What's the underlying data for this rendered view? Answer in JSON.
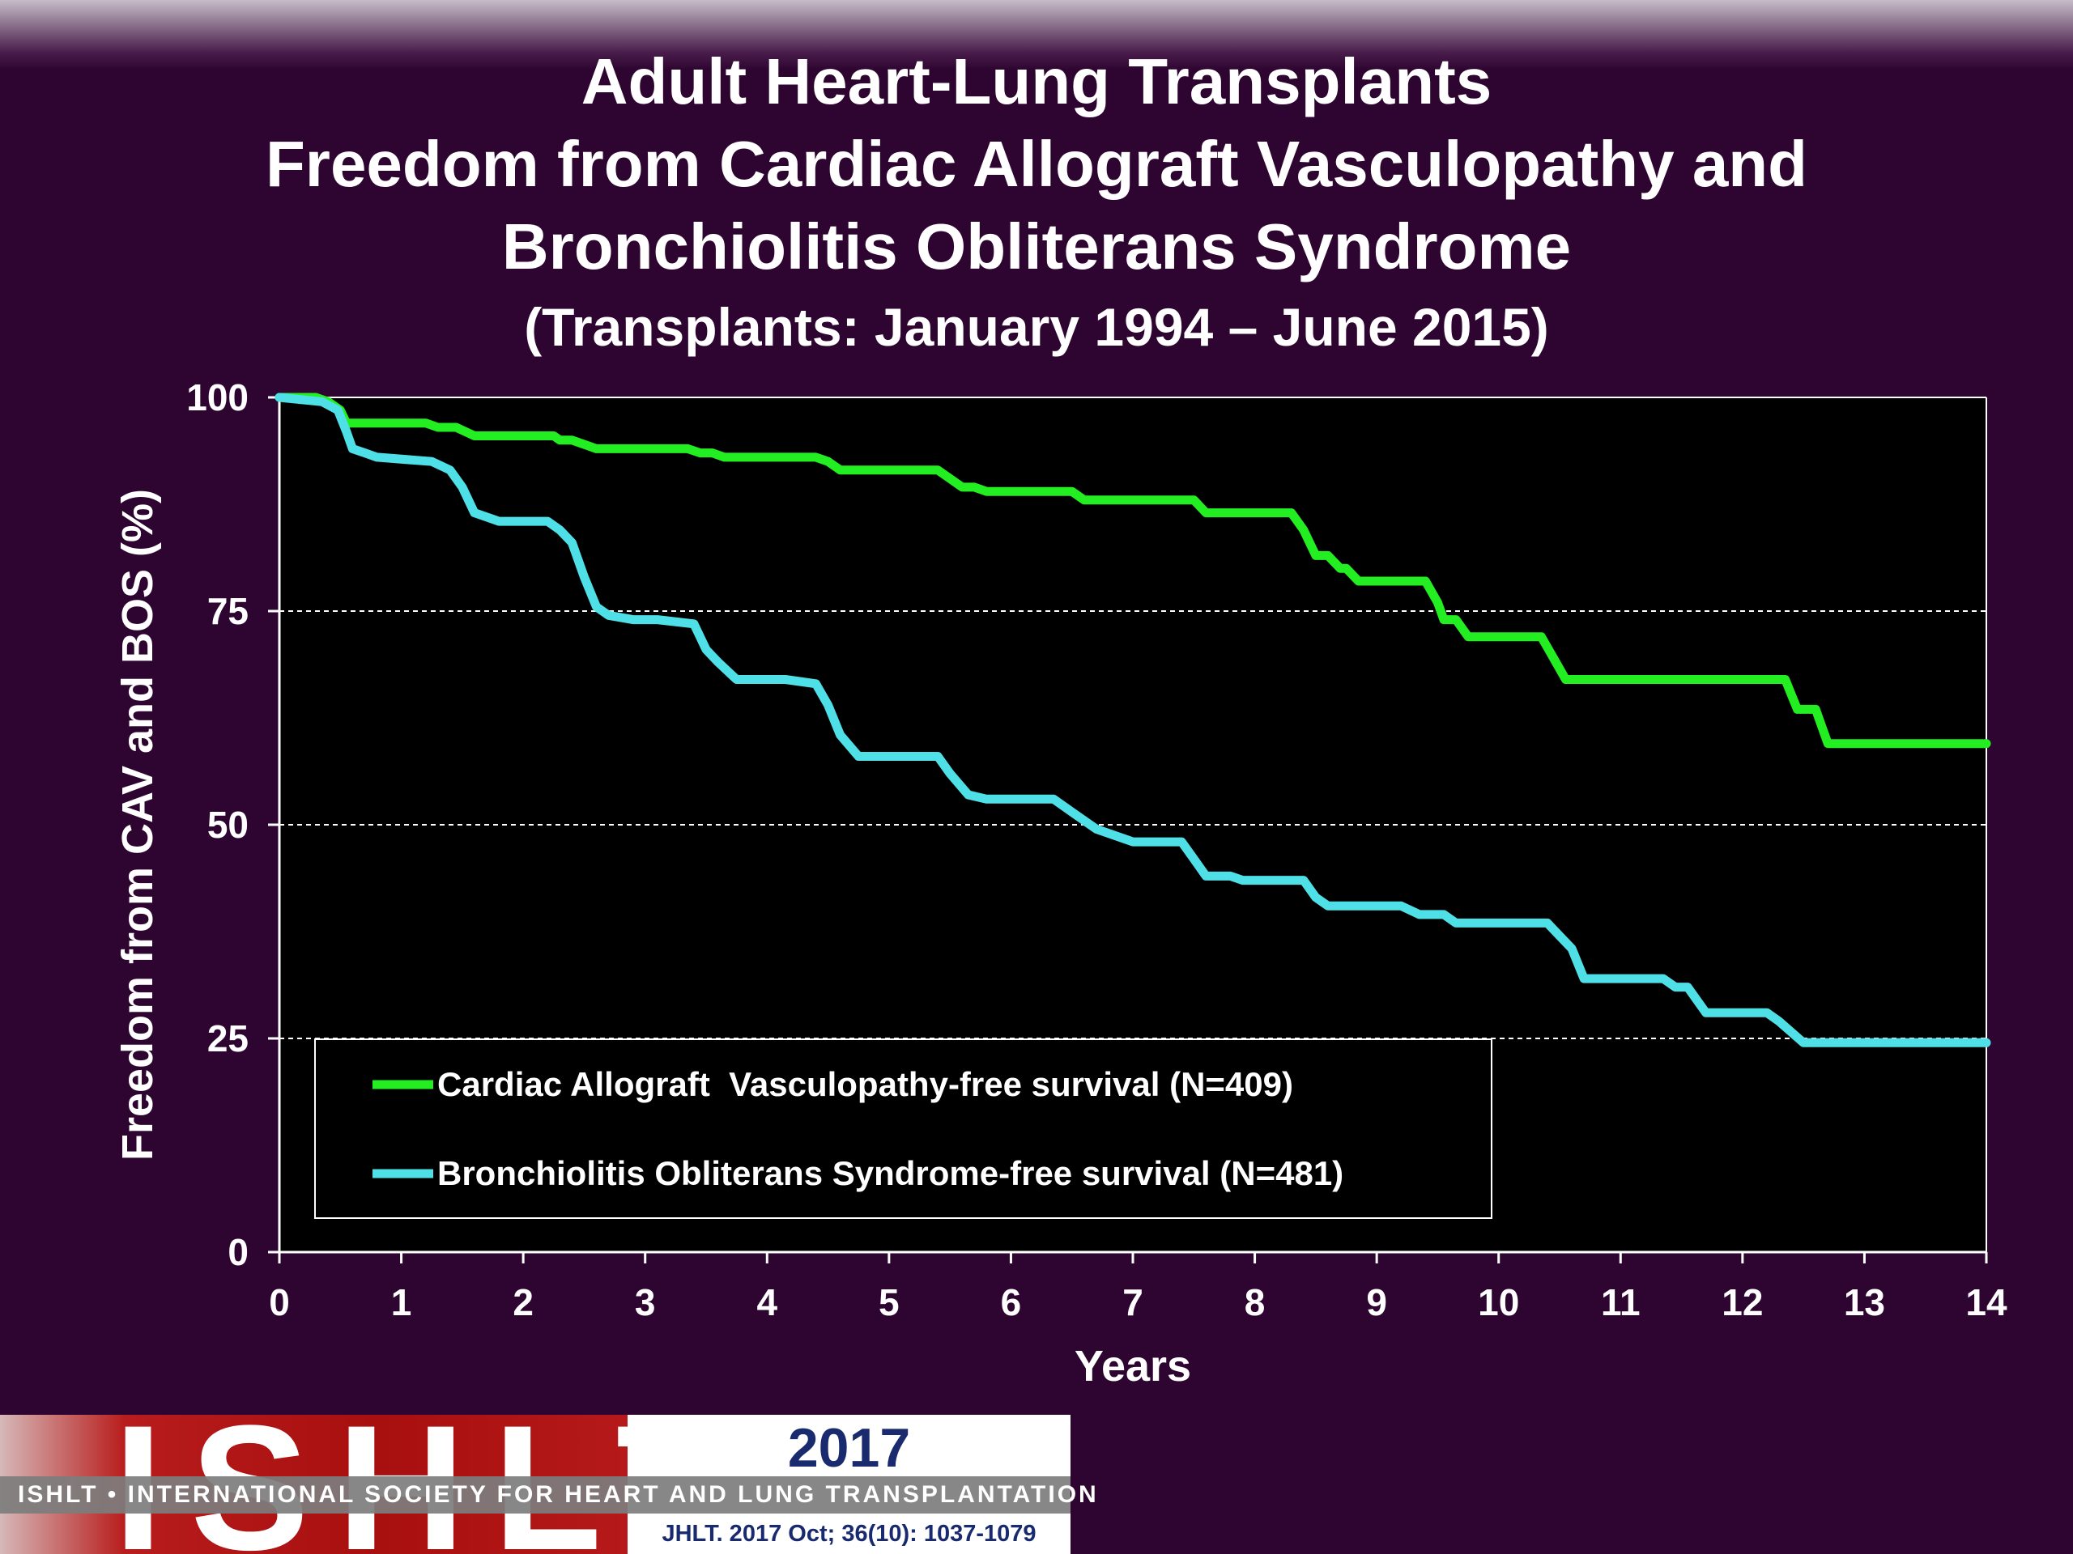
{
  "header": {
    "title": "Adult Heart-Lung Transplants",
    "subtitle_line1": "Freedom from Cardiac Allograft Vasculopathy and",
    "subtitle_line2": "Bronchiolitis Obliterans Syndrome",
    "subtitle_line3": "(Transplants: January 1994 – June 2015)"
  },
  "chart_data": {
    "type": "line",
    "xlabel": "Years",
    "ylabel": "Freedom from CAV and BOS (%)",
    "xlim": [
      0,
      14
    ],
    "ylim": [
      0,
      100
    ],
    "x_ticks": [
      0,
      1,
      2,
      3,
      4,
      5,
      6,
      7,
      8,
      9,
      10,
      11,
      12,
      13,
      14
    ],
    "y_ticks": [
      0,
      25,
      50,
      75,
      100
    ],
    "grid": "horizontal dashed at 25, 50, 75",
    "legend_position": "lower-left inside plot",
    "background": "#000000",
    "series": [
      {
        "name": "Cardiac Allograft  Vasculopathy-free survival (N=409)",
        "color": "#22ee22",
        "points": [
          [
            0,
            100
          ],
          [
            0.3,
            100
          ],
          [
            0.4,
            99.5
          ],
          [
            0.5,
            98.5
          ],
          [
            0.55,
            97
          ],
          [
            1.2,
            97
          ],
          [
            1.3,
            96.5
          ],
          [
            1.45,
            96.5
          ],
          [
            1.6,
            95.5
          ],
          [
            2.25,
            95.5
          ],
          [
            2.3,
            95
          ],
          [
            2.4,
            95
          ],
          [
            2.5,
            94.5
          ],
          [
            2.6,
            94
          ],
          [
            3.35,
            94
          ],
          [
            3.45,
            93.5
          ],
          [
            3.55,
            93.5
          ],
          [
            3.65,
            93
          ],
          [
            4.4,
            93
          ],
          [
            4.5,
            92.5
          ],
          [
            4.6,
            91.5
          ],
          [
            5.4,
            91.5
          ],
          [
            5.5,
            90.5
          ],
          [
            5.6,
            89.5
          ],
          [
            5.7,
            89.5
          ],
          [
            5.8,
            89
          ],
          [
            6.5,
            89
          ],
          [
            6.6,
            88
          ],
          [
            7.5,
            88
          ],
          [
            7.6,
            86.5
          ],
          [
            8.3,
            86.5
          ],
          [
            8.4,
            84.5
          ],
          [
            8.5,
            81.5
          ],
          [
            8.6,
            81.5
          ],
          [
            8.7,
            80
          ],
          [
            8.75,
            80
          ],
          [
            8.85,
            78.5
          ],
          [
            9.4,
            78.5
          ],
          [
            9.5,
            76
          ],
          [
            9.55,
            74
          ],
          [
            9.65,
            74
          ],
          [
            9.75,
            72
          ],
          [
            10.35,
            72
          ],
          [
            10.45,
            69.5
          ],
          [
            10.55,
            67
          ],
          [
            12.35,
            67
          ],
          [
            12.45,
            63.5
          ],
          [
            12.6,
            63.5
          ],
          [
            12.7,
            59.5
          ],
          [
            14,
            59.5
          ]
        ]
      },
      {
        "name": "Bronchiolitis Obliterans Syndrome-free survival (N=481)",
        "color": "#4ee0e6",
        "points": [
          [
            0,
            100
          ],
          [
            0.35,
            99.5
          ],
          [
            0.48,
            98.5
          ],
          [
            0.55,
            96
          ],
          [
            0.6,
            94
          ],
          [
            0.7,
            93.5
          ],
          [
            0.8,
            93
          ],
          [
            1.25,
            92.5
          ],
          [
            1.4,
            91.5
          ],
          [
            1.5,
            89.5
          ],
          [
            1.6,
            86.5
          ],
          [
            1.7,
            86
          ],
          [
            1.8,
            85.5
          ],
          [
            2.2,
            85.5
          ],
          [
            2.3,
            84.5
          ],
          [
            2.4,
            83
          ],
          [
            2.5,
            79
          ],
          [
            2.6,
            75.5
          ],
          [
            2.7,
            74.5
          ],
          [
            2.9,
            74
          ],
          [
            3.1,
            74
          ],
          [
            3.4,
            73.5
          ],
          [
            3.5,
            70.5
          ],
          [
            3.6,
            69
          ],
          [
            3.75,
            67
          ],
          [
            4.15,
            67
          ],
          [
            4.4,
            66.5
          ],
          [
            4.5,
            64
          ],
          [
            4.6,
            60.5
          ],
          [
            4.75,
            58
          ],
          [
            5.4,
            58
          ],
          [
            5.5,
            56
          ],
          [
            5.65,
            53.5
          ],
          [
            5.8,
            53
          ],
          [
            6.35,
            53
          ],
          [
            6.5,
            51.5
          ],
          [
            6.7,
            49.5
          ],
          [
            6.9,
            48.5
          ],
          [
            7.0,
            48
          ],
          [
            7.4,
            48
          ],
          [
            7.5,
            46
          ],
          [
            7.6,
            44
          ],
          [
            7.8,
            44
          ],
          [
            7.9,
            43.5
          ],
          [
            8.4,
            43.5
          ],
          [
            8.5,
            41.5
          ],
          [
            8.6,
            40.5
          ],
          [
            9.2,
            40.5
          ],
          [
            9.35,
            39.5
          ],
          [
            9.55,
            39.5
          ],
          [
            9.65,
            38.5
          ],
          [
            10.4,
            38.5
          ],
          [
            10.5,
            37
          ],
          [
            10.6,
            35.5
          ],
          [
            10.7,
            32
          ],
          [
            11.35,
            32
          ],
          [
            11.45,
            31
          ],
          [
            11.55,
            31
          ],
          [
            11.7,
            28
          ],
          [
            12.2,
            28
          ],
          [
            12.3,
            27
          ],
          [
            12.5,
            24.5
          ],
          [
            14,
            24.5
          ]
        ]
      }
    ]
  },
  "footer": {
    "logo_text": "ISHLT",
    "society_text": "ISHLT • INTERNATIONAL SOCIETY FOR HEART AND LUNG TRANSPLANTATION",
    "year": "2017",
    "citation": "JHLT. 2017 Oct; 36(10): 1037-1079"
  }
}
